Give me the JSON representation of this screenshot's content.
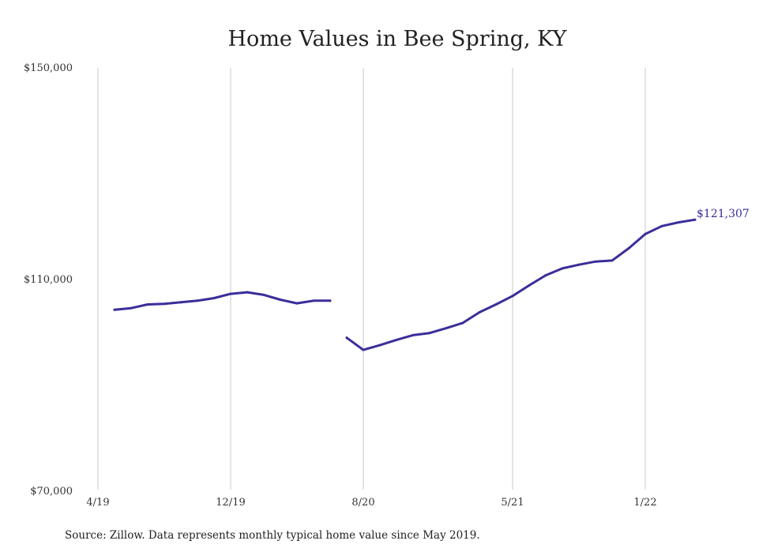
{
  "chart_data": {
    "type": "line",
    "title": "Home Values in Bee Spring, KY",
    "source": "Source: Zillow. Data represents monthly typical home value since May 2019.",
    "xlabel": "",
    "ylabel": "",
    "ylim": [
      70000,
      150000
    ],
    "yticks": [
      {
        "value": 70000,
        "label": "$70,000"
      },
      {
        "value": 110000,
        "label": "$110,000"
      },
      {
        "value": 150000,
        "label": "$150,000"
      }
    ],
    "xlim": [
      "2019-04",
      "2022-06"
    ],
    "xticks": [
      {
        "date": "2019-04",
        "label": "4/19"
      },
      {
        "date": "2019-12",
        "label": "12/19"
      },
      {
        "date": "2020-08",
        "label": "8/20"
      },
      {
        "date": "2021-05",
        "label": "5/21"
      },
      {
        "date": "2022-01",
        "label": "1/22"
      }
    ],
    "grid": {
      "vertical": true,
      "horizontal": false
    },
    "line_color": "#3a2e9a",
    "end_label": "$121,307",
    "series": [
      {
        "segments": [
          [
            {
              "x": "2019-05",
              "y": 104300
            },
            {
              "x": "2019-06",
              "y": 104600
            },
            {
              "x": "2019-07",
              "y": 105300
            },
            {
              "x": "2019-08",
              "y": 105400
            },
            {
              "x": "2019-09",
              "y": 105700
            },
            {
              "x": "2019-10",
              "y": 106000
            },
            {
              "x": "2019-11",
              "y": 106500
            },
            {
              "x": "2019-12",
              "y": 107300
            },
            {
              "x": "2020-01",
              "y": 107600
            },
            {
              "x": "2020-02",
              "y": 107100
            },
            {
              "x": "2020-03",
              "y": 106200
            },
            {
              "x": "2020-04",
              "y": 105500
            },
            {
              "x": "2020-05",
              "y": 106000
            },
            {
              "x": "2020-06",
              "y": 106000
            }
          ],
          [
            {
              "x": "2020-07",
              "y": 99000
            },
            {
              "x": "2020-08",
              "y": 96700
            },
            {
              "x": "2020-09",
              "y": 97600
            },
            {
              "x": "2020-10",
              "y": 98600
            },
            {
              "x": "2020-11",
              "y": 99500
            },
            {
              "x": "2020-12",
              "y": 99900
            },
            {
              "x": "2021-01",
              "y": 100800
            },
            {
              "x": "2021-02",
              "y": 101800
            },
            {
              "x": "2021-03",
              "y": 103800
            },
            {
              "x": "2021-04",
              "y": 105300
            },
            {
              "x": "2021-05",
              "y": 106900
            },
            {
              "x": "2021-06",
              "y": 108900
            },
            {
              "x": "2021-07",
              "y": 110800
            },
            {
              "x": "2021-08",
              "y": 112100
            },
            {
              "x": "2021-09",
              "y": 112800
            },
            {
              "x": "2021-10",
              "y": 113400
            },
            {
              "x": "2021-11",
              "y": 113600
            },
            {
              "x": "2021-12",
              "y": 115900
            },
            {
              "x": "2022-01",
              "y": 118600
            },
            {
              "x": "2022-02",
              "y": 120100
            },
            {
              "x": "2022-03",
              "y": 120800
            },
            {
              "x": "2022-04",
              "y": 121307
            }
          ]
        ]
      }
    ]
  }
}
